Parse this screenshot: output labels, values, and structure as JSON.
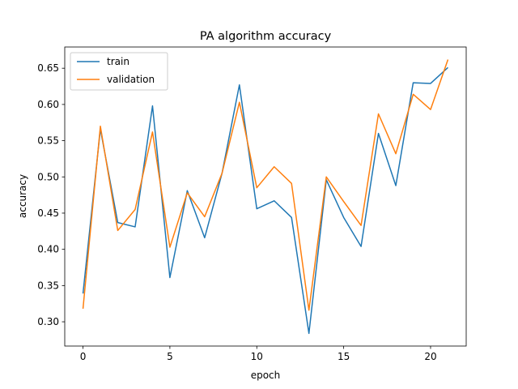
{
  "chart_data": {
    "type": "line",
    "title": "PA algorithm accuracy",
    "xlabel": "epoch",
    "ylabel": "accuracy",
    "xlim": [
      -1.05,
      22.05
    ],
    "ylim": [
      0.2665,
      0.6793
    ],
    "xticks": [
      0,
      5,
      10,
      15,
      20
    ],
    "yticks": [
      0.3,
      0.35,
      0.4,
      0.45,
      0.5,
      0.55,
      0.6,
      0.65
    ],
    "legend_position": "upper-left",
    "grid": false,
    "x": [
      0,
      1,
      2,
      3,
      4,
      5,
      6,
      7,
      8,
      9,
      10,
      11,
      12,
      13,
      14,
      15,
      16,
      17,
      18,
      19,
      20,
      21
    ],
    "series": [
      {
        "name": "train",
        "color": "#1f77b4",
        "values": [
          0.339,
          0.566,
          0.437,
          0.431,
          0.598,
          0.361,
          0.481,
          0.416,
          0.505,
          0.627,
          0.456,
          0.467,
          0.444,
          0.284,
          0.496,
          0.444,
          0.404,
          0.56,
          0.488,
          0.63,
          0.629,
          0.651
        ]
      },
      {
        "name": "validation",
        "color": "#ff7f0e",
        "values": [
          0.318,
          0.57,
          0.426,
          0.455,
          0.562,
          0.403,
          0.478,
          0.445,
          0.505,
          0.603,
          0.485,
          0.514,
          0.491,
          0.316,
          0.5,
          0.466,
          0.433,
          0.587,
          0.532,
          0.614,
          0.593,
          0.662
        ]
      }
    ]
  }
}
